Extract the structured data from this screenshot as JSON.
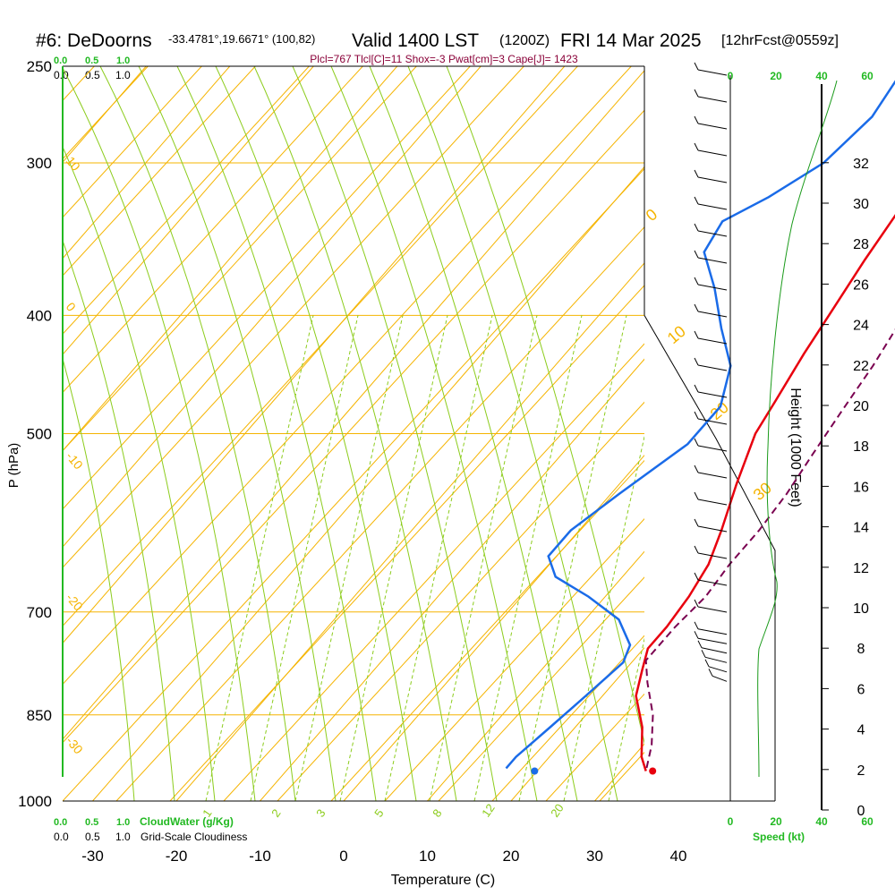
{
  "title": {
    "station": "#6: DeDoorns",
    "coords": "-33.4781°,19.6671° (100,82)",
    "valid": "Valid 1400 LST",
    "zulu": "(1200Z)",
    "date": "FRI 14 Mar 2025",
    "forecast": "[12hrFcst@0559z]"
  },
  "params_line": "Plcl=767 Tlcl[C]=11 Shox=-3 Pwat[cm]=3 Cape[J]= 1423",
  "top_scales": {
    "cloudwater": [
      "0.0",
      "0.5",
      "1.0"
    ],
    "cloudiness": [
      "0.0",
      "0.5",
      "1.0"
    ]
  },
  "bottom_scales": {
    "cloudwater": [
      "0.0",
      "0.5",
      "1.0"
    ],
    "cloudwater_label": "CloudWater (g/Kg)",
    "cloudiness": [
      "0.0",
      "0.5",
      "1.0"
    ],
    "cloudiness_label": "Grid-Scale Cloudiness"
  },
  "speed_scale": {
    "ticks": [
      "0",
      "20",
      "40",
      "60"
    ],
    "label": "Speed (kt)"
  },
  "colors": {
    "isotherm": "#f5b400",
    "dry_adiabat": "#8ccc1c",
    "moist_adiabat": "#8ccc1c",
    "temperature": "#e8000e",
    "dewpoint": "#1a6be8",
    "parcel": "#7a0050",
    "speed": "#1a9a1a",
    "green_text": "#22b922",
    "params_text": "#8a0038"
  },
  "chart_data": {
    "type": "line",
    "xlabel": "Temperature (C)",
    "ylabel": "P (hPa)",
    "right_label": "Height (1000 Feet)",
    "x_ticks": [
      -30,
      -20,
      -10,
      0,
      10,
      20,
      30,
      40
    ],
    "pressure_ticks": [
      250,
      300,
      400,
      500,
      700,
      850,
      1000
    ],
    "height_ticks_kft": [
      0,
      2,
      4,
      6,
      8,
      10,
      12,
      14,
      16,
      18,
      20,
      22,
      24,
      26,
      28,
      30,
      32
    ],
    "isotherm_labels": [
      "10",
      "0",
      "-10",
      "-20",
      "-30"
    ],
    "upper_isotherm_labels": [
      "0",
      "10",
      "20",
      "30"
    ],
    "dry_adiabat_labels": [
      "1",
      "2",
      "3",
      "5",
      "8",
      "12",
      "20"
    ],
    "series": [
      {
        "name": "Temperature",
        "points": [
          [
            -0.5,
            255
          ],
          [
            1,
            275
          ],
          [
            3,
            300
          ],
          [
            5,
            330
          ],
          [
            6,
            360
          ],
          [
            7.5,
            400
          ],
          [
            8.5,
            430
          ],
          [
            10,
            470
          ],
          [
            11,
            500
          ],
          [
            14,
            550
          ],
          [
            17,
            600
          ],
          [
            19,
            640
          ],
          [
            20,
            680
          ],
          [
            20.5,
            720
          ],
          [
            20.5,
            750
          ],
          [
            22,
            780
          ],
          [
            24,
            820
          ],
          [
            28,
            870
          ],
          [
            31,
            920
          ],
          [
            33,
            945
          ]
        ]
      },
      {
        "name": "Dewpoint",
        "points": [
          [
            -9,
            255
          ],
          [
            -8,
            275
          ],
          [
            -9,
            300
          ],
          [
            -12,
            320
          ],
          [
            -15,
            335
          ],
          [
            -14,
            355
          ],
          [
            -9,
            380
          ],
          [
            -4,
            410
          ],
          [
            1,
            440
          ],
          [
            4,
            475
          ],
          [
            4,
            510
          ],
          [
            1,
            560
          ],
          [
            -1,
            600
          ],
          [
            -1,
            630
          ],
          [
            2,
            655
          ],
          [
            8,
            680
          ],
          [
            14,
            710
          ],
          [
            18,
            745
          ],
          [
            19,
            770
          ],
          [
            18,
            820
          ],
          [
            17,
            870
          ],
          [
            16,
            920
          ],
          [
            16,
            940
          ]
        ]
      },
      {
        "name": "Parcel",
        "points": [
          [
            3,
            255
          ],
          [
            6,
            280
          ],
          [
            9,
            305
          ],
          [
            12,
            330
          ],
          [
            14,
            360
          ],
          [
            16.5,
            400
          ],
          [
            18,
            440
          ],
          [
            19,
            480
          ],
          [
            20,
            520
          ],
          [
            21,
            560
          ],
          [
            21.5,
            600
          ],
          [
            21.5,
            640
          ],
          [
            22,
            680
          ],
          [
            21.5,
            720
          ],
          [
            21.5,
            767
          ],
          [
            24,
            800
          ],
          [
            28,
            850
          ],
          [
            31,
            900
          ],
          [
            33,
            945
          ]
        ]
      }
    ],
    "surface_temperature": 33.8,
    "surface_dewpoint": 19.7,
    "surface_pressure": 945
  }
}
